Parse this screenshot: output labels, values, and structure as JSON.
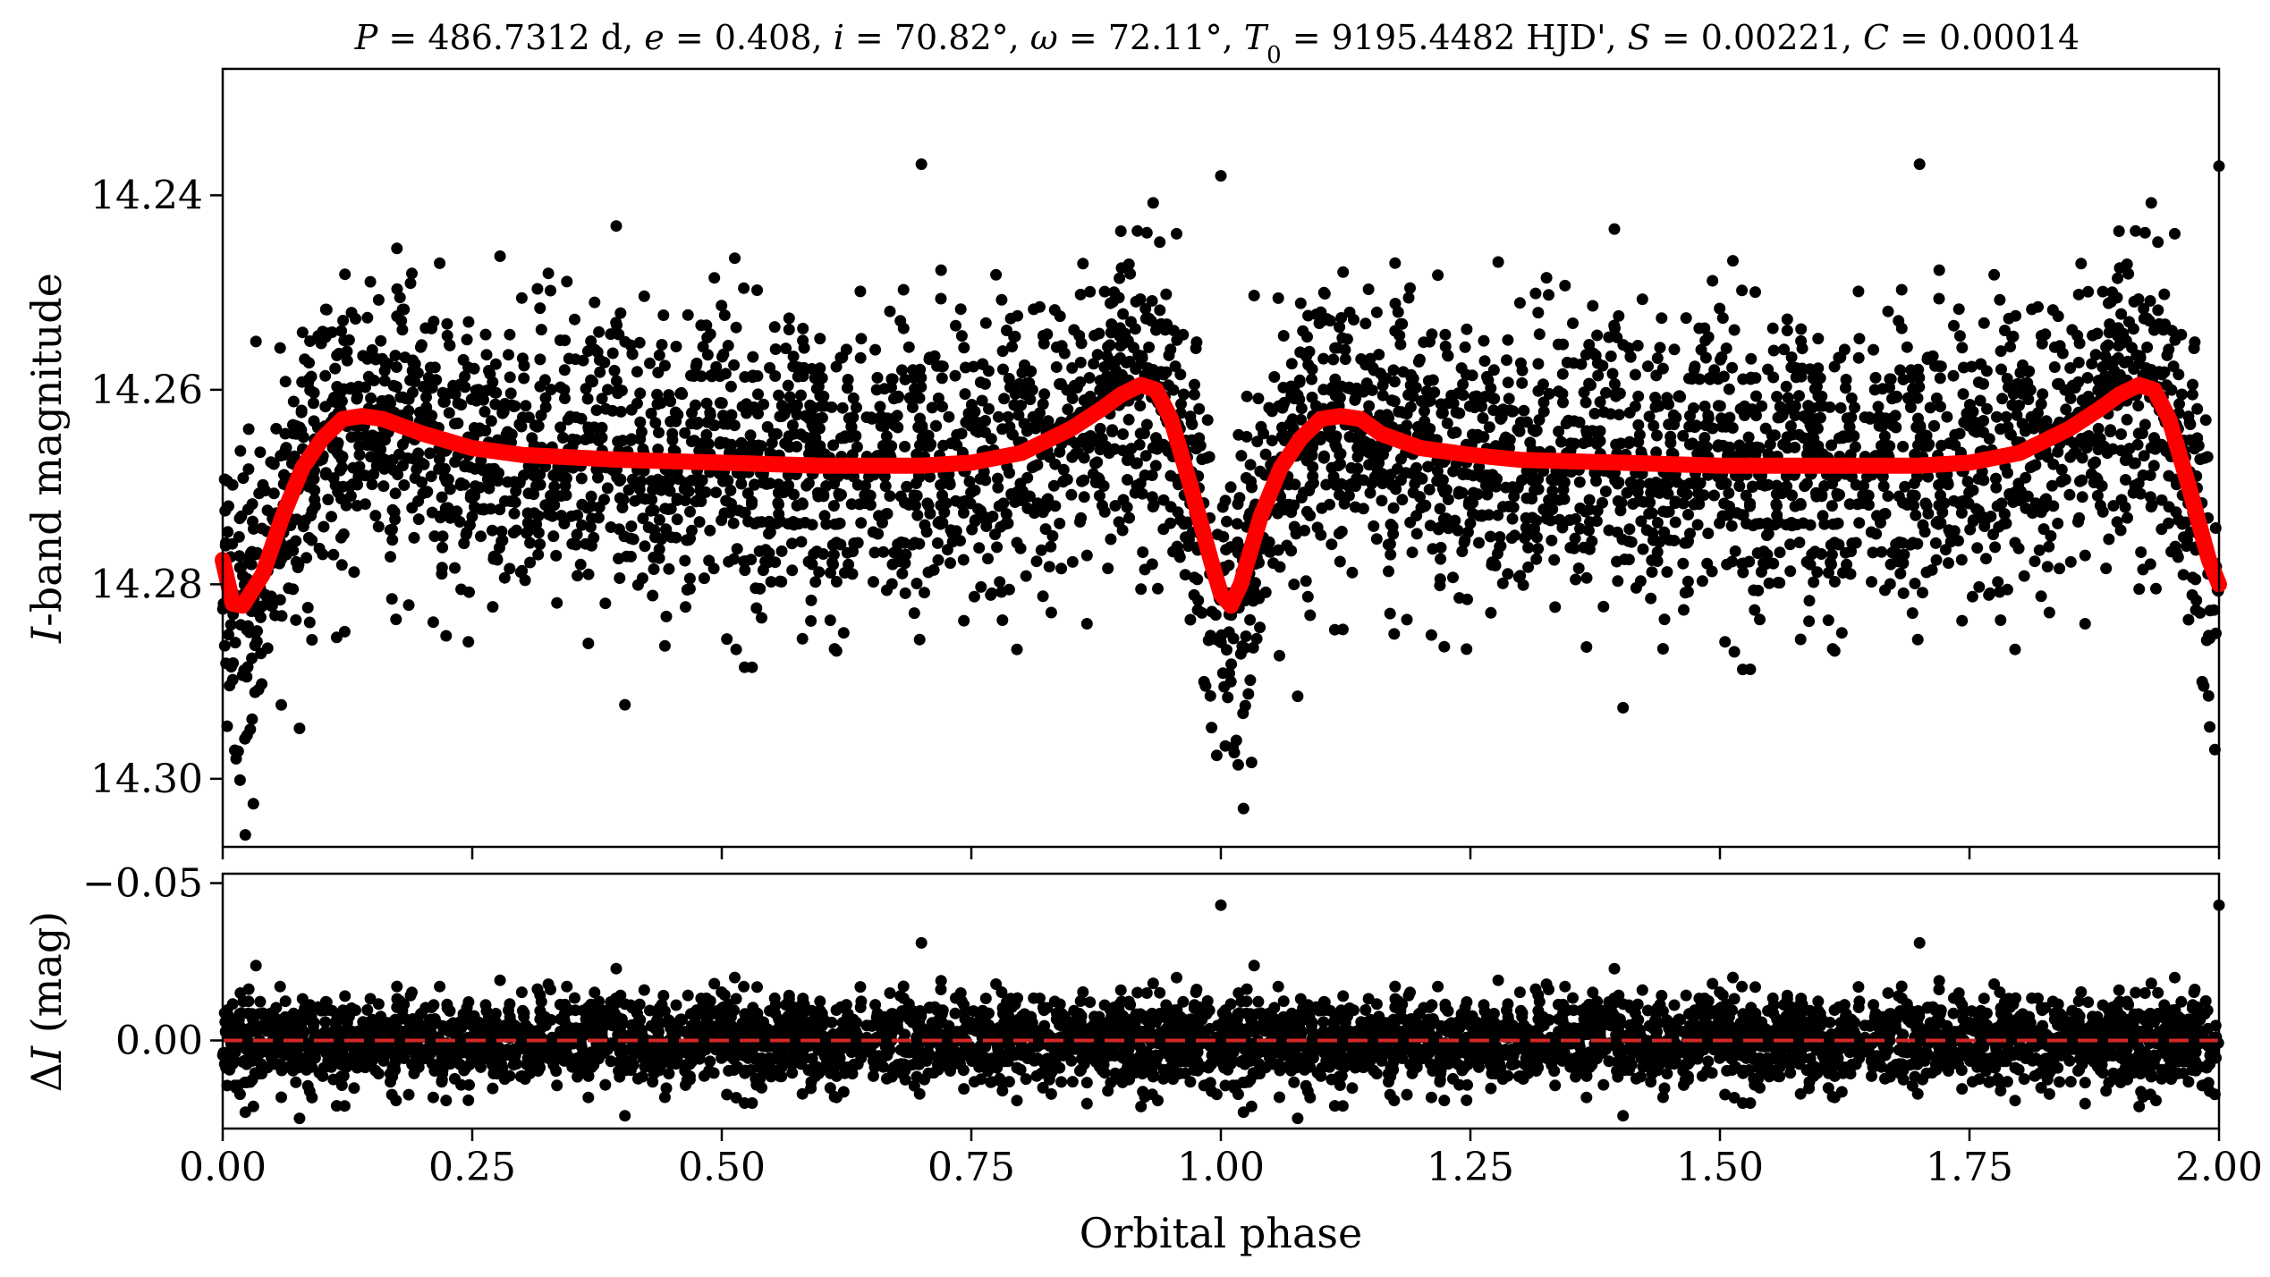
{
  "chart_data": [
    {
      "type": "scatter",
      "panel": "top",
      "title": {
        "P": "P = 486.7312 d",
        "e": "e = 0.408",
        "i": "i = 70.82°",
        "omega": "ω = 72.11°",
        "T0": "T0 = 9195.4482 HJD'",
        "S": "S = 0.00221",
        "C": "C = 0.00014"
      },
      "xlabel": "",
      "ylabel": "I-band magnitude",
      "xlim": [
        0.0,
        2.0
      ],
      "ylim": [
        14.307,
        14.227
      ],
      "y_inverted": true,
      "yticks": [
        "14.24",
        "14.26",
        "14.28",
        "14.30"
      ],
      "ytick_values": [
        14.24,
        14.26,
        14.28,
        14.3
      ],
      "series": [
        {
          "kind": "points",
          "color": "#000000",
          "description_phase_range": [
            0.0,
            2.0
          ],
          "approx_count": 4200,
          "scatter_sigma_mag": 0.0075
        },
        {
          "kind": "model_line",
          "color": "#ff0000",
          "x": [
            0.0,
            0.01,
            0.02,
            0.04,
            0.06,
            0.08,
            0.1,
            0.12,
            0.14,
            0.16,
            0.2,
            0.25,
            0.3,
            0.4,
            0.5,
            0.6,
            0.7,
            0.75,
            0.8,
            0.85,
            0.88,
            0.9,
            0.92,
            0.935,
            0.95,
            0.97,
            0.99,
            1.0,
            1.01,
            1.02,
            1.04,
            1.06,
            1.08,
            1.1,
            1.12,
            1.14,
            1.16,
            1.2,
            1.25,
            1.3,
            1.4,
            1.5,
            1.6,
            1.7,
            1.75,
            1.8,
            1.85,
            1.88,
            1.9,
            1.92,
            1.935,
            1.95,
            1.97,
            1.99,
            2.0
          ],
          "y": [
            14.2775,
            14.282,
            14.2822,
            14.279,
            14.273,
            14.268,
            14.265,
            14.263,
            14.2627,
            14.263,
            14.2645,
            14.266,
            14.2667,
            14.2672,
            14.2675,
            14.2678,
            14.2678,
            14.2675,
            14.2665,
            14.264,
            14.262,
            14.2605,
            14.2595,
            14.26,
            14.263,
            14.27,
            14.2775,
            14.281,
            14.2822,
            14.28,
            14.273,
            14.268,
            14.265,
            14.263,
            14.2627,
            14.263,
            14.2645,
            14.266,
            14.2667,
            14.2672,
            14.2675,
            14.2678,
            14.2678,
            14.2678,
            14.2675,
            14.2665,
            14.264,
            14.262,
            14.2605,
            14.2595,
            14.26,
            14.263,
            14.27,
            14.2775,
            14.28
          ]
        }
      ]
    },
    {
      "type": "scatter",
      "panel": "bottom",
      "xlabel": "Orbital phase",
      "ylabel": "ΔI (mag)",
      "xlim": [
        0.0,
        2.0
      ],
      "ylim": [
        0.028,
        -0.053
      ],
      "y_inverted": true,
      "yticks": [
        "−0.05",
        "0.00"
      ],
      "ytick_values": [
        -0.05,
        0.0
      ],
      "xticks": [
        "0.00",
        "0.25",
        "0.50",
        "0.75",
        "1.00",
        "1.25",
        "1.50",
        "1.75",
        "2.00"
      ],
      "xtick_values": [
        0.0,
        0.25,
        0.5,
        0.75,
        1.0,
        1.25,
        1.5,
        1.75,
        2.0
      ],
      "series": [
        {
          "kind": "residual_points",
          "color": "#000000",
          "scatter_sigma_mag": 0.0075
        },
        {
          "kind": "zero_line",
          "color": "#d62728",
          "style": "dashed",
          "y": 0.0
        }
      ],
      "outliers": [
        {
          "x": 0.7,
          "y": -0.031
        },
        {
          "x": 1.7,
          "y": -0.031
        },
        {
          "x": 1.0,
          "y": -0.043
        },
        {
          "x": 2.0,
          "y": -0.043
        },
        {
          "x": 0.92,
          "y": 0.021
        },
        {
          "x": 1.92,
          "y": 0.021
        }
      ]
    }
  ]
}
